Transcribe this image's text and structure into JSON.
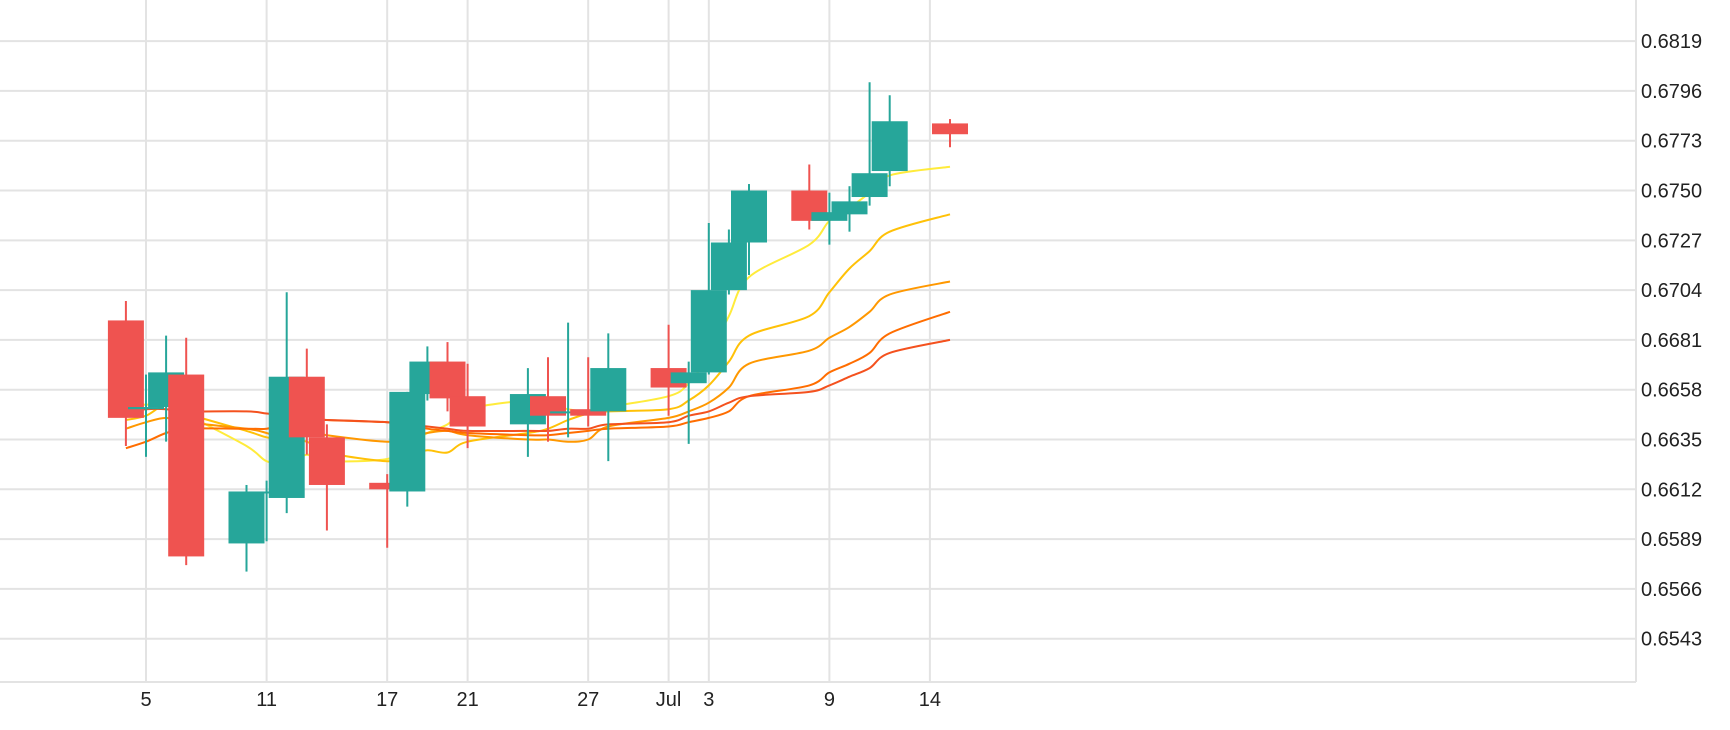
{
  "colors": {
    "up": "#26a69a",
    "down": "#ef5350",
    "grid": "#e3e3e3",
    "text": "#222222"
  },
  "chart_data": {
    "type": "candlestick",
    "grid": true,
    "y_axis_position": "right",
    "ylim": [
      0.6523,
      0.6838
    ],
    "y_ticks": [
      "0.6819",
      "0.6796",
      "0.6773",
      "0.6750",
      "0.6727",
      "0.6704",
      "0.6681",
      "0.6658",
      "0.6635",
      "0.6612",
      "0.6589",
      "0.6566",
      "0.6543"
    ],
    "x_ticks": [
      "5",
      "11",
      "17",
      "21",
      "27",
      "Jul",
      "3",
      "9",
      "14"
    ],
    "x_ticks_date": [
      "Jun 5",
      "Jun 11",
      "Jun 17",
      "Jun 21",
      "Jun 27",
      "Jul 1",
      "Jul 3",
      "Jul 9",
      "Jul 14"
    ],
    "candles": [
      {
        "date": "Jun 4",
        "open": 0.669,
        "high": 0.6699,
        "low": 0.6632,
        "close": 0.6645
      },
      {
        "date": "Jun 5",
        "open": 0.6649,
        "high": 0.6665,
        "low": 0.6627,
        "close": 0.665
      },
      {
        "date": "Jun 6",
        "open": 0.665,
        "high": 0.6683,
        "low": 0.6634,
        "close": 0.6666
      },
      {
        "date": "Jun 7",
        "open": 0.6665,
        "high": 0.6682,
        "low": 0.6577,
        "close": 0.6581
      },
      {
        "date": "Jun 10",
        "open": 0.6587,
        "high": 0.6614,
        "low": 0.6574,
        "close": 0.6611
      },
      {
        "date": "Jun 11",
        "open": 0.6611,
        "high": 0.6616,
        "low": 0.6588,
        "close": 0.6611
      },
      {
        "date": "Jun 12",
        "open": 0.6608,
        "high": 0.6703,
        "low": 0.6601,
        "close": 0.6664
      },
      {
        "date": "Jun 13",
        "open": 0.6664,
        "high": 0.6677,
        "low": 0.6628,
        "close": 0.6636
      },
      {
        "date": "Jun 14",
        "open": 0.6636,
        "high": 0.6642,
        "low": 0.6593,
        "close": 0.6614
      },
      {
        "date": "Jun 17",
        "open": 0.6615,
        "high": 0.6619,
        "low": 0.6585,
        "close": 0.6612
      },
      {
        "date": "Jun 18",
        "open": 0.6611,
        "high": 0.6657,
        "low": 0.6604,
        "close": 0.6657
      },
      {
        "date": "Jun 19",
        "open": 0.6656,
        "high": 0.6678,
        "low": 0.6653,
        "close": 0.6671
      },
      {
        "date": "Jun 20",
        "open": 0.6671,
        "high": 0.668,
        "low": 0.6648,
        "close": 0.6654
      },
      {
        "date": "Jun 21",
        "open": 0.6655,
        "high": 0.667,
        "low": 0.6631,
        "close": 0.6641
      },
      {
        "date": "Jun 24",
        "open": 0.6642,
        "high": 0.6668,
        "low": 0.6627,
        "close": 0.6656
      },
      {
        "date": "Jun 25",
        "open": 0.6655,
        "high": 0.6673,
        "low": 0.6634,
        "close": 0.6646
      },
      {
        "date": "Jun 26",
        "open": 0.6648,
        "high": 0.6689,
        "low": 0.6636,
        "close": 0.6648
      },
      {
        "date": "Jun 27",
        "open": 0.6649,
        "high": 0.6673,
        "low": 0.6641,
        "close": 0.6646
      },
      {
        "date": "Jun 28",
        "open": 0.6648,
        "high": 0.6684,
        "low": 0.6625,
        "close": 0.6668
      },
      {
        "date": "Jul 1",
        "open": 0.6668,
        "high": 0.6688,
        "low": 0.6646,
        "close": 0.6659
      },
      {
        "date": "Jul 2",
        "open": 0.6661,
        "high": 0.6671,
        "low": 0.6633,
        "close": 0.6666
      },
      {
        "date": "Jul 3",
        "open": 0.6666,
        "high": 0.6735,
        "low": 0.6665,
        "close": 0.6704
      },
      {
        "date": "Jul 4",
        "open": 0.6704,
        "high": 0.6732,
        "low": 0.6702,
        "close": 0.6726
      },
      {
        "date": "Jul 5",
        "open": 0.6726,
        "high": 0.6753,
        "low": 0.6711,
        "close": 0.675
      },
      {
        "date": "Jul 8",
        "open": 0.675,
        "high": 0.6762,
        "low": 0.6732,
        "close": 0.6736
      },
      {
        "date": "Jul 9",
        "open": 0.6736,
        "high": 0.6749,
        "low": 0.6725,
        "close": 0.674
      },
      {
        "date": "Jul 10",
        "open": 0.6739,
        "high": 0.6752,
        "low": 0.6731,
        "close": 0.6745
      },
      {
        "date": "Jul 11",
        "open": 0.6747,
        "high": 0.68,
        "low": 0.6743,
        "close": 0.6758
      },
      {
        "date": "Jul 12",
        "open": 0.6759,
        "high": 0.6794,
        "low": 0.6752,
        "close": 0.6782
      },
      {
        "date": "Jul 15",
        "open": 0.6781,
        "high": 0.6783,
        "low": 0.677,
        "close": 0.6776
      }
    ],
    "series": [
      {
        "color": "#ffeb3b",
        "values": [
          0.6655,
          0.6651,
          0.6655,
          0.6647,
          0.6632,
          0.6625,
          0.6624,
          0.6628,
          0.6625,
          0.6626,
          0.6632,
          0.6638,
          0.6642,
          0.6649,
          0.6653,
          0.6651,
          0.6649,
          0.6648,
          0.665,
          0.6655,
          0.6661,
          0.6674,
          0.6692,
          0.671,
          0.6725,
          0.6736,
          0.6742,
          0.6749,
          0.6757,
          0.6761
        ]
      },
      {
        "color": "#ffc107",
        "values": [
          0.6644,
          0.6646,
          0.6651,
          0.6647,
          0.6639,
          0.6636,
          0.6635,
          0.6634,
          0.6629,
          0.6625,
          0.6628,
          0.663,
          0.6629,
          0.6634,
          0.6638,
          0.664,
          0.6644,
          0.6647,
          0.6648,
          0.6649,
          0.6653,
          0.666,
          0.6671,
          0.6683,
          0.6692,
          0.6703,
          0.6714,
          0.6722,
          0.6731,
          0.6739
        ]
      },
      {
        "color": "#ff9800",
        "values": [
          0.664,
          0.6643,
          0.6645,
          0.6643,
          0.664,
          0.6638,
          0.6635,
          0.6639,
          0.6637,
          0.6634,
          0.6636,
          0.6638,
          0.6639,
          0.6637,
          0.6635,
          0.6635,
          0.6634,
          0.6635,
          0.6641,
          0.6645,
          0.6648,
          0.6652,
          0.6659,
          0.667,
          0.6676,
          0.6682,
          0.6687,
          0.6694,
          0.6702,
          0.6708
        ]
      },
      {
        "color": "#ff6d00",
        "values": [
          0.6631,
          0.6634,
          0.6638,
          0.664,
          0.664,
          0.664,
          0.6642,
          0.6645,
          0.6644,
          0.6643,
          0.6642,
          0.664,
          0.6639,
          0.6638,
          0.6637,
          0.6637,
          0.6638,
          0.6639,
          0.664,
          0.6641,
          0.6643,
          0.6645,
          0.6648,
          0.6655,
          0.666,
          0.6666,
          0.667,
          0.6675,
          0.6684,
          0.6694
        ]
      },
      {
        "color": "#f4511e",
        "values": [
          0.6648,
          0.6649,
          0.6649,
          0.6648,
          0.6648,
          0.6647,
          0.6646,
          0.6644,
          0.6644,
          0.6643,
          0.6642,
          0.6641,
          0.664,
          0.6639,
          0.6639,
          0.6639,
          0.664,
          0.664,
          0.6642,
          0.6643,
          0.6646,
          0.6648,
          0.6652,
          0.6655,
          0.6657,
          0.666,
          0.6664,
          0.6668,
          0.6675,
          0.6681
        ]
      }
    ]
  }
}
